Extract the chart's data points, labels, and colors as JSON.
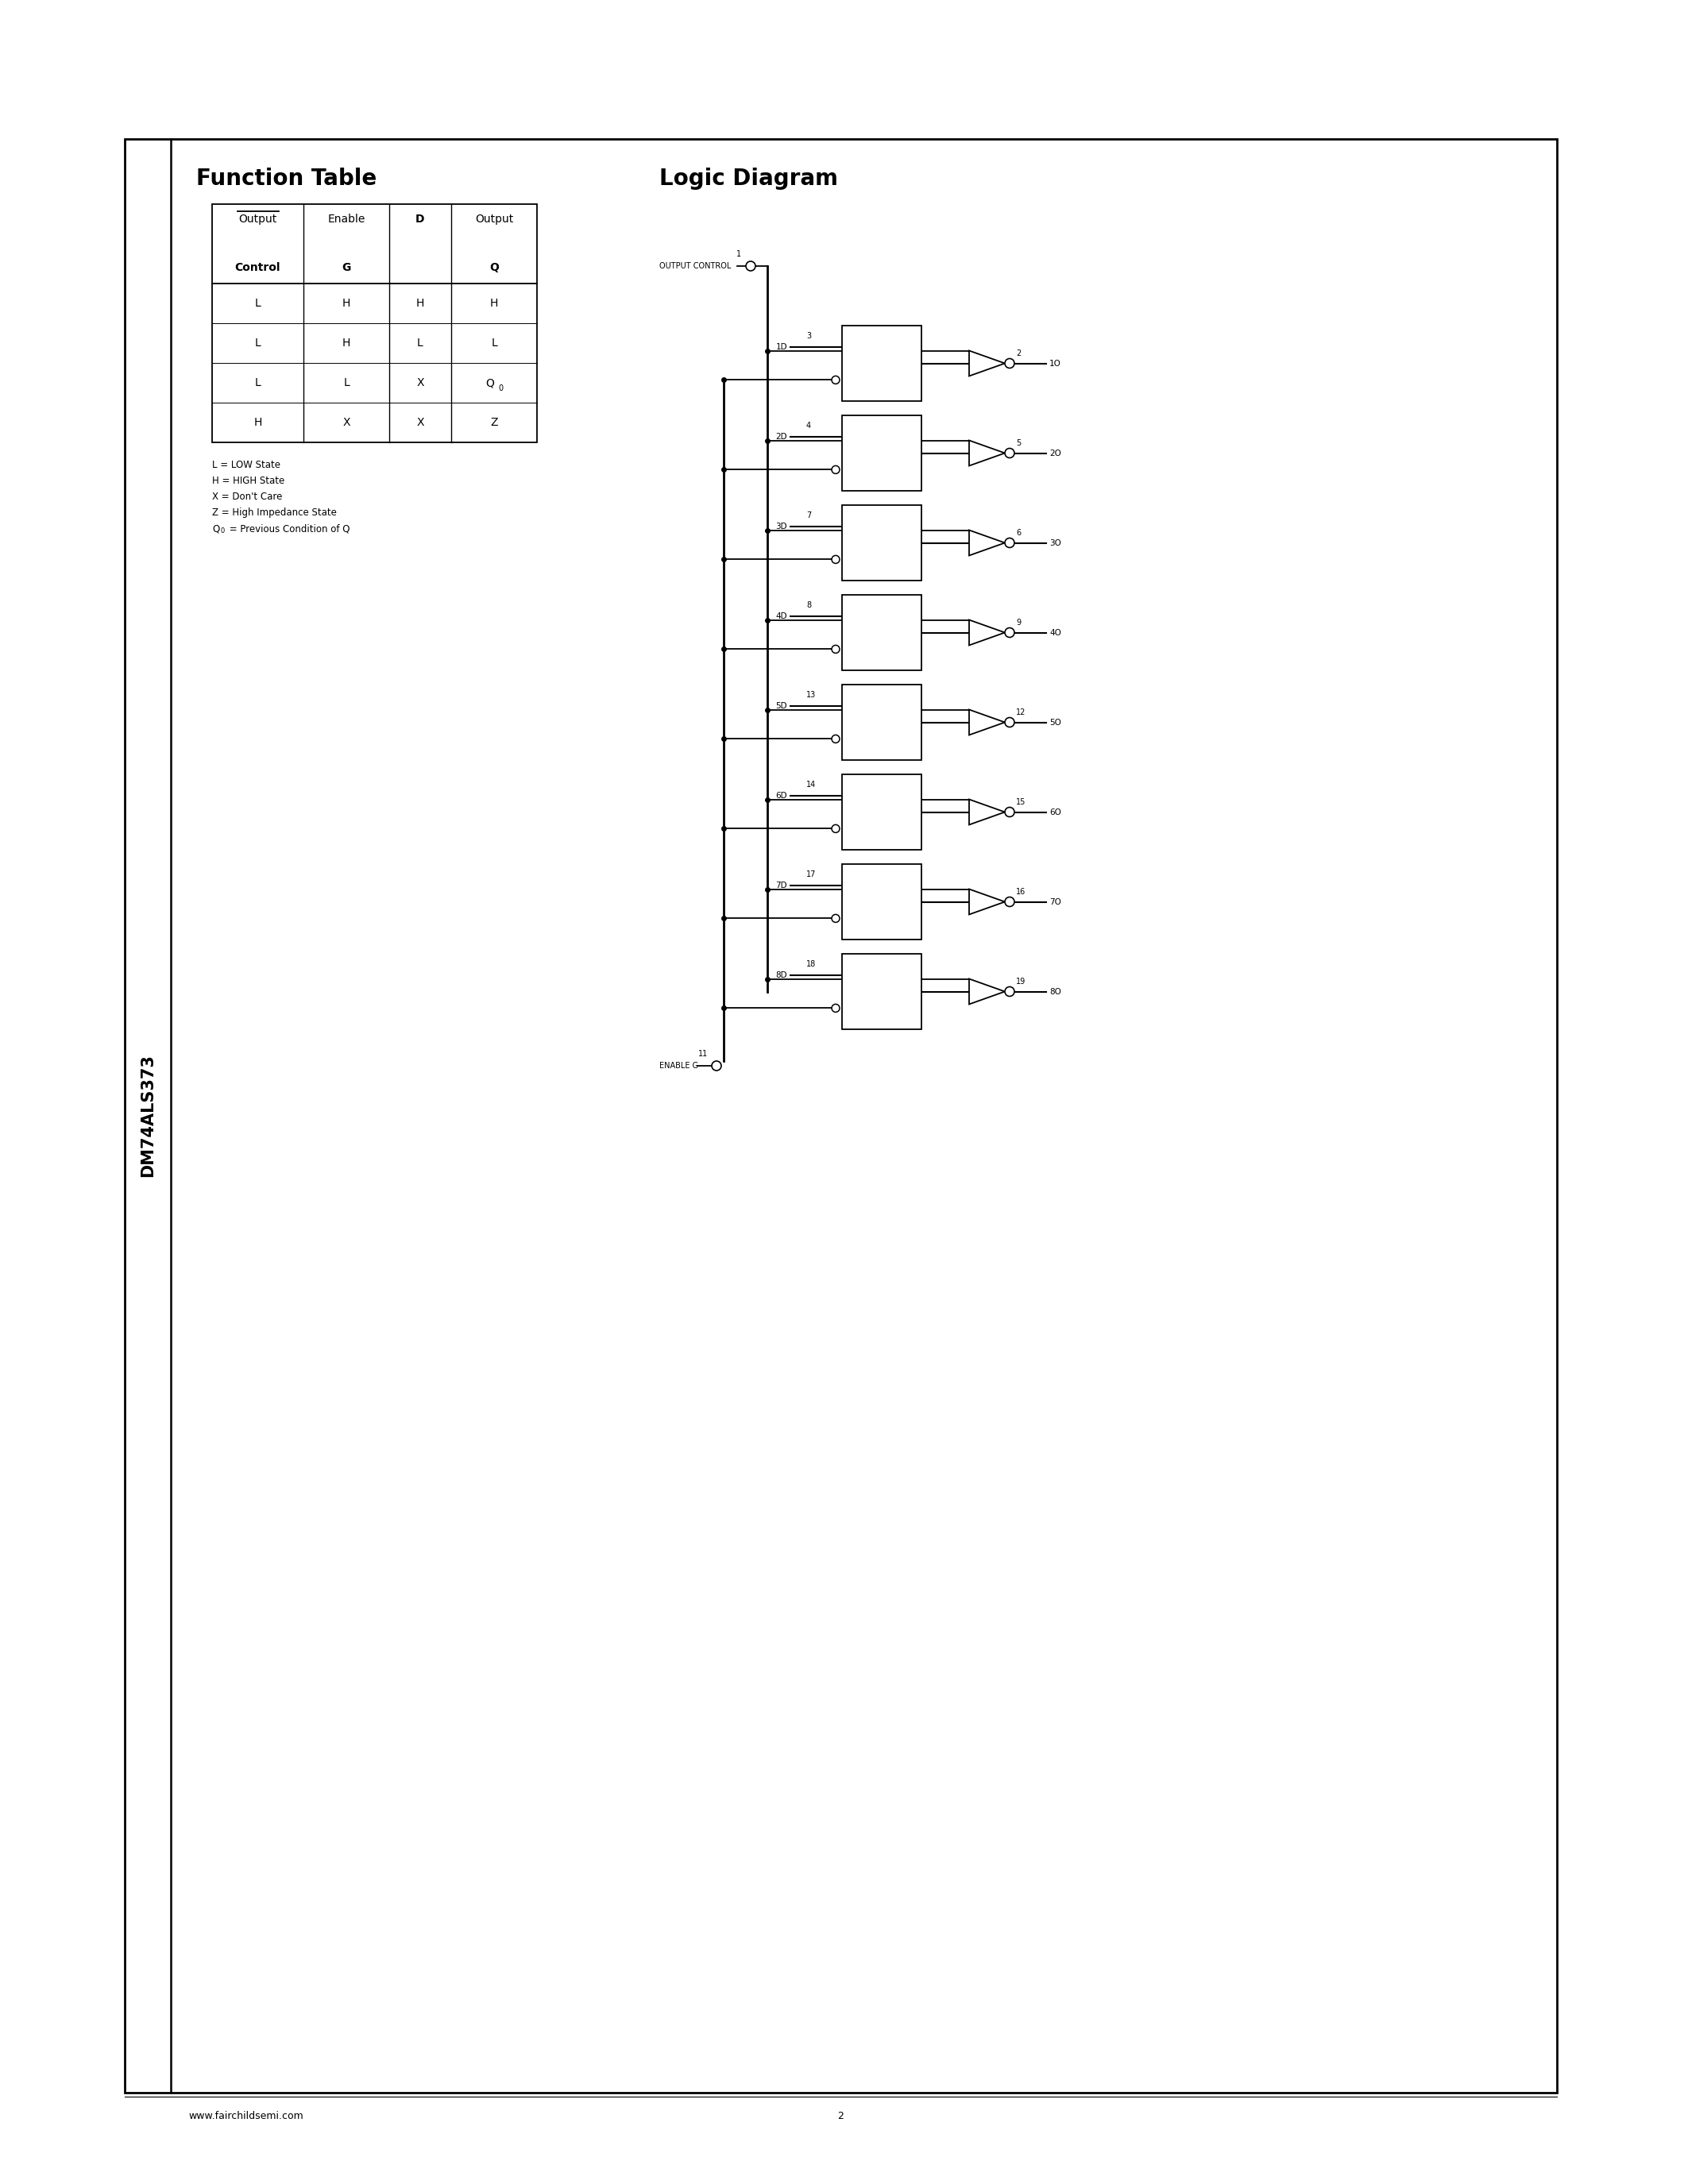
{
  "page_bg": "#ffffff",
  "side_label": "DM74ALS373",
  "title_ft": "Function Table",
  "title_ld": "Logic Diagram",
  "tbl_hdr1": [
    "Output",
    "Enable",
    "D",
    "Output"
  ],
  "tbl_hdr2": [
    "Control",
    "G",
    "",
    "Q"
  ],
  "tbl_data": [
    [
      "L",
      "H",
      "H",
      "H"
    ],
    [
      "L",
      "H",
      "L",
      "L"
    ],
    [
      "L",
      "L",
      "X",
      "Q0"
    ],
    [
      "H",
      "X",
      "X",
      "Z"
    ]
  ],
  "legend": [
    "L = LOW State",
    "H = HIGH State",
    "X = Don't Care",
    "Z = High Impedance State",
    "Q0 = Previous Condition of Q"
  ],
  "input_labels": [
    "1D",
    "2D",
    "3D",
    "4D",
    "5D",
    "6D",
    "7D",
    "8D"
  ],
  "input_pins": [
    3,
    4,
    7,
    8,
    13,
    14,
    17,
    18
  ],
  "output_pins": [
    2,
    5,
    6,
    9,
    12,
    15,
    16,
    19
  ],
  "output_labels": [
    "1O",
    "2O",
    "3O",
    "4O",
    "5O",
    "6O",
    "7O",
    "8O"
  ],
  "oc_pin": 1,
  "enable_pin": 11,
  "footer_url": "www.fairchildsemi.com",
  "footer_page": "2"
}
